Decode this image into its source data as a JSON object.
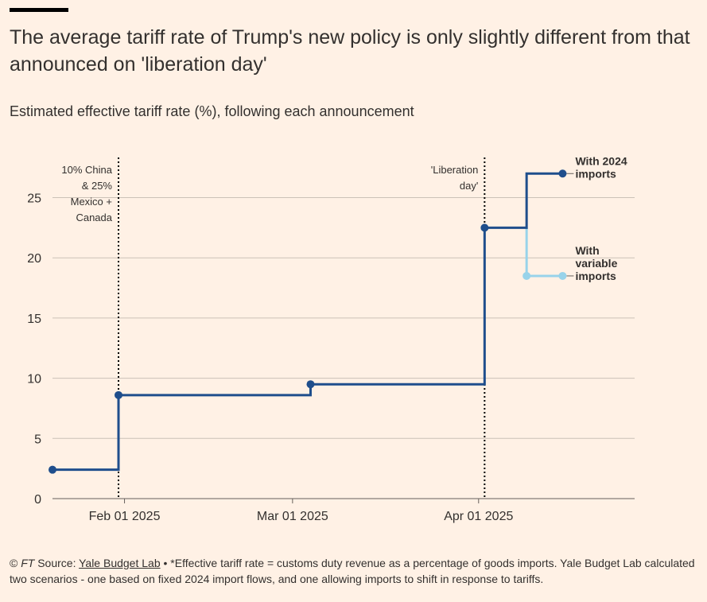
{
  "header": {
    "title": "The average tariff rate of Trump's new policy is only slightly different from that announced on 'liberation day'",
    "subtitle": "Estimated effective tariff rate (%), following each announcement"
  },
  "footer": {
    "copyright": "©",
    "ft": "FT",
    "source_label": "Source:",
    "source_link": "Yale Budget Lab",
    "note": "• *Effective tariff rate = customs duty revenue as a percentage of goods imports. Yale Budget Lab calculated two scenarios - one based on fixed 2024 import flows, and one allowing imports to shift in response to tariffs."
  },
  "chart_data": {
    "type": "line",
    "step": true,
    "x_unit": "date",
    "xlim": [
      "2025-01-20",
      "2025-04-27"
    ],
    "ylim": [
      0,
      29
    ],
    "y_ticks": [
      0,
      5,
      10,
      15,
      20,
      25
    ],
    "x_ticks": [
      {
        "date": "2025-02-01",
        "label": "Feb 01 2025"
      },
      {
        "date": "2025-03-01",
        "label": "Mar 01 2025"
      },
      {
        "date": "2025-04-01",
        "label": "Apr 01 2025"
      }
    ],
    "grid": true,
    "series": [
      {
        "name": "With 2024 imports",
        "color": "#1f4e8c",
        "points": [
          {
            "x": "2025-01-20",
            "y": 2.4
          },
          {
            "x": "2025-01-31",
            "y": 8.6
          },
          {
            "x": "2025-03-04",
            "y": 9.5
          },
          {
            "x": "2025-04-02",
            "y": 22.5
          },
          {
            "x": "2025-04-09",
            "y": 27.0
          },
          {
            "x": "2025-04-15",
            "y": 27.0
          }
        ]
      },
      {
        "name": "With variable imports",
        "color": "#98d3ea",
        "points": [
          {
            "x": "2025-04-09",
            "y": 18.5
          },
          {
            "x": "2025-04-15",
            "y": 18.5
          }
        ],
        "connects_from": {
          "x": "2025-04-09",
          "y": 22.5
        }
      }
    ],
    "series_labels": [
      {
        "lines": [
          "With 2024",
          "imports"
        ]
      },
      {
        "lines": [
          "With",
          "variable",
          "imports"
        ]
      }
    ],
    "annotations": [
      {
        "x": "2025-01-31",
        "lines": [
          "10% China",
          "& 25%",
          "Mexico +",
          "Canada"
        ]
      },
      {
        "x": "2025-04-02",
        "lines": [
          "'Liberation",
          "day'"
        ]
      }
    ]
  }
}
